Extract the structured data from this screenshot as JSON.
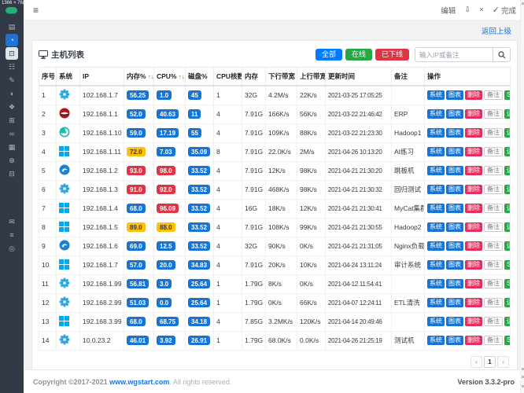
{
  "overlay": {
    "size_label": "1366 × 768"
  },
  "sidebar": {
    "items_top": [
      {
        "id": "server",
        "glyph": "▤",
        "state": "normal"
      },
      {
        "id": "dashboard",
        "glyph": "◔",
        "state": "active"
      },
      {
        "id": "host-list",
        "glyph": "⊡",
        "state": "selected"
      },
      {
        "id": "process",
        "glyph": "☷",
        "state": "normal"
      },
      {
        "id": "service",
        "glyph": "✎",
        "state": "normal"
      },
      {
        "id": "message",
        "glyph": "◗",
        "state": "normal"
      },
      {
        "id": "ping",
        "glyph": "❖",
        "state": "normal"
      },
      {
        "id": "table",
        "glyph": "⊞",
        "state": "normal"
      },
      {
        "id": "link",
        "glyph": "∞",
        "state": "normal"
      },
      {
        "id": "apps",
        "glyph": "▦",
        "state": "normal"
      },
      {
        "id": "add",
        "glyph": "⊕",
        "state": "normal"
      },
      {
        "id": "docs",
        "glyph": "⊟",
        "state": "normal"
      }
    ],
    "items_bottom": [
      {
        "id": "mail",
        "glyph": "✉",
        "state": "normal"
      },
      {
        "id": "menu",
        "glyph": "≡",
        "state": "normal"
      },
      {
        "id": "zoom-search",
        "glyph": "◎",
        "state": "normal"
      }
    ]
  },
  "topbar": {
    "menu_glyph": "≡",
    "edit_label": "编辑",
    "download_glyph": "⇩",
    "close_glyph": "×",
    "done_check_glyph": "✓",
    "done_label": "完成"
  },
  "back_link": "返回上级",
  "card": {
    "title": "主机列表",
    "filters": [
      {
        "label": "全部",
        "color": "#007bff"
      },
      {
        "label": "在线",
        "color": "#28a745"
      },
      {
        "label": "已下线",
        "color": "#dc3545"
      }
    ],
    "search_placeholder": "输入IP或备注",
    "table": {
      "columns": [
        "序号",
        "系统",
        "IP",
        "内存%",
        "CPU%",
        "磁盘%",
        "CPU核数",
        "内存",
        "下行带宽",
        "上行带宽",
        "更新时间",
        "备注",
        "操作"
      ],
      "sortable_columns": [
        "内存%",
        "CPU%"
      ],
      "sort_icons": {
        "asc": "↑",
        "desc": "↓"
      },
      "op_labels": {
        "system": "系统",
        "chart": "图表",
        "delete": "删除",
        "note": "备注"
      },
      "badge_colors": {
        "normal": "#1574d4",
        "warning": "#ffc107",
        "danger": "#dc3545"
      },
      "rows": [
        {
          "no": "1",
          "os": "linux",
          "ip": "102.168.1.7",
          "mem": "56.25",
          "cpu": "1.0",
          "disk": "45",
          "cores": "1",
          "ram": "32G",
          "down": "4.2M/s",
          "up": "22K/s",
          "updated": "2021-03-25 17:05:25",
          "note": "",
          "remote": "SSH"
        },
        {
          "no": "2",
          "os": "redhat",
          "ip": "192.168.1.1",
          "mem": "52.0",
          "cpu": "40.63",
          "disk": "11",
          "cores": "4",
          "ram": "7.91G",
          "down": "166K/s",
          "up": "56K/s",
          "updated": "2021-03-22 21:46:42",
          "note": "ERP",
          "remote": "远程"
        },
        {
          "no": "3",
          "os": "deepin",
          "ip": "192.168.1.10",
          "mem": "59.0",
          "cpu": "17.19",
          "disk": "55",
          "cores": "4",
          "ram": "7.91G",
          "down": "109K/s",
          "up": "88K/s",
          "updated": "2021-03-22 21:23:30",
          "note": "Hadoop1",
          "remote": "远程"
        },
        {
          "no": "4",
          "os": "windows",
          "ip": "192.168.1.11",
          "mem": "72.0",
          "cpu": "7.03",
          "disk": "35.09",
          "cores": "8",
          "ram": "7.91G",
          "down": "22.0K/s",
          "up": "2M/s",
          "updated": "2021-04-26 10:13:20",
          "note": "AI练习",
          "remote": "远程"
        },
        {
          "no": "5",
          "os": "kylin",
          "ip": "192.168.1.2",
          "mem": "93.0",
          "cpu": "98.0",
          "disk": "33.52",
          "cores": "4",
          "ram": "7.91G",
          "down": "12K/s",
          "up": "98K/s",
          "updated": "2021-04-21 21:30:20",
          "note": "跳板机",
          "remote": "远程"
        },
        {
          "no": "6",
          "os": "linux",
          "ip": "192.168.1.3",
          "mem": "91.0",
          "cpu": "92.0",
          "disk": "33.52",
          "cores": "4",
          "ram": "7.91G",
          "down": "468K/s",
          "up": "98K/s",
          "updated": "2021-04-21 21:30:32",
          "note": "回归测试",
          "remote": "远程"
        },
        {
          "no": "7",
          "os": "windows",
          "ip": "192.168.1.4",
          "mem": "68.0",
          "cpu": "96.09",
          "disk": "33.52",
          "cores": "4",
          "ram": "16G",
          "down": "18K/s",
          "up": "12K/s",
          "updated": "2021-04-21 21:30:41",
          "note": "MyCat集群",
          "remote": "远程"
        },
        {
          "no": "8",
          "os": "windows",
          "ip": "192.168.1.5",
          "mem": "89.0",
          "cpu": "88.0",
          "disk": "33.52",
          "cores": "4",
          "ram": "7.91G",
          "down": "108K/s",
          "up": "99K/s",
          "updated": "2021-04-21 21:30:55",
          "note": "Hadoop2",
          "remote": "远程"
        },
        {
          "no": "9",
          "os": "kylin",
          "ip": "192.168.1.6",
          "mem": "69.0",
          "cpu": "12.5",
          "disk": "33.52",
          "cores": "4",
          "ram": "32G",
          "down": "90K/s",
          "up": "0K/s",
          "updated": "2021-04-21 21:31:05",
          "note": "Nginx负载",
          "remote": "远程"
        },
        {
          "no": "10",
          "os": "windows",
          "ip": "192.168.1.7",
          "mem": "57.0",
          "cpu": "20.0",
          "disk": "34.83",
          "cores": "4",
          "ram": "7.91G",
          "down": "20K/s",
          "up": "10K/s",
          "updated": "2021-04-24 13:11:24",
          "note": "审计系统",
          "remote": "SSH"
        },
        {
          "no": "11",
          "os": "linux",
          "ip": "192.168.1.99",
          "mem": "56.81",
          "cpu": "3.0",
          "disk": "25.64",
          "cores": "1",
          "ram": "1.79G",
          "down": "8K/s",
          "up": "0K/s",
          "updated": "2021-04-12 11:54:41",
          "note": "",
          "remote": "SSH"
        },
        {
          "no": "12",
          "os": "linux",
          "ip": "192.168.2.99",
          "mem": "51.03",
          "cpu": "0.0",
          "disk": "25.64",
          "cores": "1",
          "ram": "1.79G",
          "down": "0K/s",
          "up": "66K/s",
          "updated": "2021-04-07 12:24:11",
          "note": "ETL清洗",
          "remote": "远程"
        },
        {
          "no": "13",
          "os": "windows",
          "ip": "192.168.3.99",
          "mem": "68.0",
          "cpu": "68.75",
          "disk": "34.18",
          "cores": "4",
          "ram": "7.85G",
          "down": "3.2MK/s",
          "up": "120K/s",
          "updated": "2021-04-14 20:49:46",
          "note": "",
          "remote": "远程"
        },
        {
          "no": "14",
          "os": "linux",
          "ip": "10.0.23.2",
          "mem": "46.01",
          "cpu": "3.92",
          "disk": "26.91",
          "cores": "1",
          "ram": "1.79G",
          "down": "68.0K/s",
          "up": "0.0K/s",
          "updated": "2021-04-26 21:25:19",
          "note": "测试机",
          "remote": "SSH"
        }
      ]
    },
    "pagination": {
      "prev": "‹",
      "page": "1",
      "next": "›"
    }
  },
  "footer": {
    "copyright_prefix": "Copyright ©2017-2021 ",
    "link": "www.wgstart.com",
    "copyright_suffix": ". All rights reserved.",
    "version": "Version 3.3.2-pro"
  }
}
